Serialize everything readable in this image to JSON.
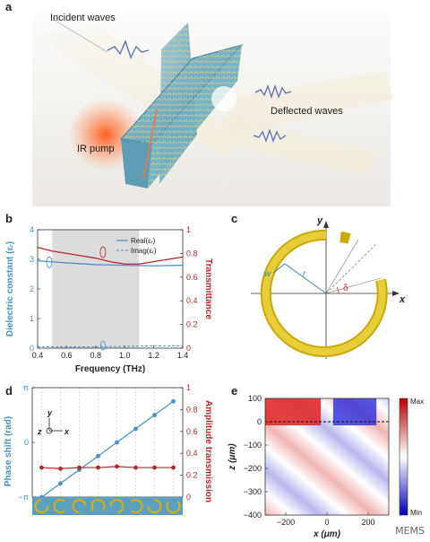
{
  "panels": {
    "a": {
      "label": "a",
      "annotations": {
        "incident": "Incident waves",
        "deflected": "Deflected waves",
        "pump": "IR pump"
      }
    },
    "b": {
      "label": "b",
      "xlabel": "Frequency (THz)",
      "ylabel_left": "Dielectric constant (εᵣ)",
      "ylabel_right": "Transmittance",
      "legend": [
        "Real(εᵣ)",
        "Imag(εᵣ)"
      ],
      "xticks": [
        "0.4",
        "0.6",
        "0.8",
        "1.0",
        "1.2",
        "1.4"
      ],
      "yticks_left": [
        "0",
        "1",
        "2",
        "3",
        "4"
      ],
      "yticks_right": [
        "0",
        "0.2",
        "0.4",
        "0.6",
        "0.8",
        "1"
      ]
    },
    "c": {
      "label": "c",
      "symbols": {
        "y": "y",
        "x": "x",
        "w": "w",
        "r": "r",
        "delta": "δ"
      }
    },
    "d": {
      "label": "d",
      "ylabel_left": "Phase shift (rad)",
      "ylabel_right": "Amplitude transmission",
      "yticks_left": [
        "−π",
        "0",
        "π"
      ],
      "yticks_right": [
        "0",
        "0.2",
        "0.4",
        "0.6",
        "0.8",
        "1"
      ],
      "axes": {
        "y": "y",
        "z": "z",
        "x": "x"
      }
    },
    "e": {
      "label": "e",
      "xlabel": "x (μm)",
      "ylabel": "z (μm)",
      "xticks": [
        "−200",
        "0",
        "200"
      ],
      "yticks": [
        "100",
        "0",
        "−100",
        "−200",
        "−300",
        "−400"
      ],
      "colorbar": {
        "max": "Max",
        "min": "Min"
      }
    }
  },
  "watermark": "MEMS",
  "colors": {
    "blue": "#4a90c8",
    "red": "#b22a2a",
    "gold": "#d4b40c",
    "gray_band": "#dcdcdc"
  },
  "chart_data": [
    {
      "panel": "b",
      "type": "line",
      "title": "",
      "xlabel": "Frequency (THz)",
      "ylabel": "Dielectric constant (εᵣ)",
      "y2label": "Transmittance",
      "xlim": [
        0.4,
        1.4
      ],
      "ylim": [
        0,
        4
      ],
      "y2lim": [
        0,
        1
      ],
      "shaded_region": [
        0.5,
        1.1
      ],
      "series": [
        {
          "name": "Real(εᵣ)",
          "axis": "left",
          "x": [
            0.4,
            0.6,
            0.8,
            1.0,
            1.2,
            1.4
          ],
          "y": [
            2.95,
            2.88,
            2.82,
            2.8,
            2.78,
            2.8
          ]
        },
        {
          "name": "Imag(εᵣ)",
          "axis": "left",
          "x": [
            0.4,
            0.6,
            0.8,
            1.0,
            1.2,
            1.4
          ],
          "y": [
            0.05,
            0.04,
            0.05,
            0.06,
            0.08,
            0.08
          ]
        },
        {
          "axis": "right",
          "x": [
            0.4,
            0.5,
            0.6,
            0.7,
            0.8,
            0.9,
            1.0,
            1.1,
            1.2,
            1.3,
            1.4
          ],
          "y": [
            0.85,
            0.82,
            0.8,
            0.78,
            0.76,
            0.73,
            0.71,
            0.71,
            0.73,
            0.75,
            0.77
          ]
        }
      ]
    },
    {
      "panel": "d",
      "type": "line",
      "ylabel": "Phase shift (rad)",
      "y2label": "Amplitude transmission",
      "ylim": [
        -3.1416,
        3.1416
      ],
      "y2lim": [
        0,
        1
      ],
      "categories": [
        "1",
        "2",
        "3",
        "4",
        "5",
        "6",
        "7",
        "8"
      ],
      "series": [
        {
          "axis": "left",
          "values": [
            -3.1416,
            -2.3562,
            -1.5708,
            -0.7854,
            0.0,
            0.7854,
            1.5708,
            2.3562
          ]
        },
        {
          "axis": "right",
          "values": [
            0.27,
            0.26,
            0.27,
            0.27,
            0.28,
            0.27,
            0.27,
            0.27
          ]
        }
      ]
    },
    {
      "panel": "e",
      "type": "heatmap",
      "xlabel": "x (μm)",
      "ylabel": "z (μm)",
      "xlim": [
        -300,
        300
      ],
      "ylim": [
        -400,
        100
      ],
      "colorbar": [
        "Min",
        "Max"
      ]
    }
  ]
}
